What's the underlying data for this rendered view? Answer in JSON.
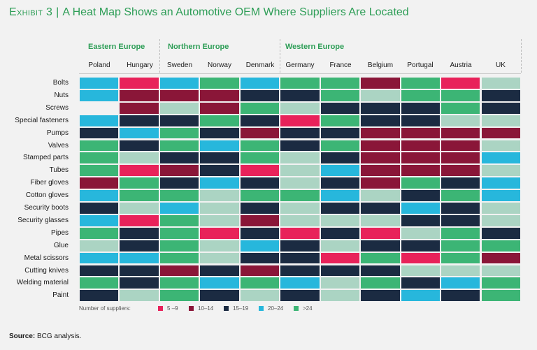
{
  "title": {
    "exhibit": "Exhibit 3",
    "separator": "|",
    "text": "A Heat Map Shows an Automotive OEM Where Suppliers Are Located"
  },
  "source": {
    "label": "Source:",
    "text": "BCG analysis."
  },
  "chart_data": {
    "type": "heatmap",
    "title": "A Heat Map Shows an Automotive OEM Where Suppliers Are Located",
    "regions": [
      {
        "name": "Eastern Europe",
        "countries": [
          "Poland",
          "Hungary"
        ]
      },
      {
        "name": "Northern Europe",
        "countries": [
          "Sweden",
          "Norway",
          "Denmark"
        ]
      },
      {
        "name": "Western Europe",
        "countries": [
          "Germany",
          "France",
          "Belgium",
          "Portugal",
          "Austria",
          "UK"
        ]
      }
    ],
    "columns": [
      "Poland",
      "Hungary",
      "Sweden",
      "Norway",
      "Denmark",
      "Germany",
      "France",
      "Belgium",
      "Portugal",
      "Austria",
      "UK"
    ],
    "rows": [
      "Bolts",
      "Nuts",
      "Screws",
      "Special fasteners",
      "Pumps",
      "Valves",
      "Stamped parts",
      "Tubes",
      "Fiber gloves",
      "Cotton gloves",
      "Security boots",
      "Security glasses",
      "Pipes",
      "Glue",
      "Metal scissors",
      "Cutting knives",
      "Welding material",
      "Paint"
    ],
    "legend": {
      "title": "Number of suppliers:",
      "categories": [
        {
          "key": "R",
          "label": "5 –9",
          "color": "#e8225a"
        },
        {
          "key": "M",
          "label": "10–14",
          "color": "#8a1638"
        },
        {
          "key": "N",
          "label": "15–19",
          "color": "#1b2b42"
        },
        {
          "key": "C",
          "label": "20–24",
          "color": "#27b7dc"
        },
        {
          "key": "G",
          "label": ">24",
          "color": "#3cb575"
        }
      ]
    },
    "extra_colors": {
      "L": "#abd4c3",
      "E": "#f2f2f2"
    },
    "values": [
      [
        "C",
        "R",
        "C",
        "G",
        "C",
        "G",
        "G",
        "M",
        "G",
        "R",
        "L"
      ],
      [
        "C",
        "M",
        "M",
        "M",
        "N",
        "N",
        "G",
        "L",
        "G",
        "G",
        "N"
      ],
      [
        "E",
        "M",
        "L",
        "M",
        "G",
        "L",
        "N",
        "N",
        "N",
        "G",
        "N"
      ],
      [
        "C",
        "N",
        "N",
        "G",
        "N",
        "R",
        "G",
        "N",
        "N",
        "L",
        "L"
      ],
      [
        "N",
        "C",
        "G",
        "N",
        "M",
        "N",
        "N",
        "M",
        "M",
        "M",
        "M"
      ],
      [
        "G",
        "N",
        "G",
        "C",
        "G",
        "N",
        "G",
        "M",
        "M",
        "M",
        "L"
      ],
      [
        "G",
        "L",
        "N",
        "N",
        "G",
        "L",
        "N",
        "M",
        "M",
        "M",
        "C"
      ],
      [
        "G",
        "R",
        "M",
        "N",
        "R",
        "L",
        "C",
        "M",
        "M",
        "M",
        "L"
      ],
      [
        "M",
        "G",
        "N",
        "C",
        "N",
        "L",
        "N",
        "M",
        "G",
        "N",
        "C"
      ],
      [
        "C",
        "G",
        "G",
        "L",
        "G",
        "G",
        "C",
        "L",
        "N",
        "G",
        "C"
      ],
      [
        "N",
        "L",
        "C",
        "L",
        "N",
        "L",
        "N",
        "N",
        "C",
        "N",
        "L"
      ],
      [
        "C",
        "R",
        "G",
        "L",
        "M",
        "L",
        "L",
        "L",
        "N",
        "N",
        "L"
      ],
      [
        "G",
        "N",
        "G",
        "R",
        "N",
        "R",
        "N",
        "R",
        "L",
        "G",
        "N"
      ],
      [
        "L",
        "N",
        "G",
        "L",
        "C",
        "N",
        "L",
        "N",
        "N",
        "G",
        "G"
      ],
      [
        "C",
        "C",
        "G",
        "L",
        "N",
        "N",
        "R",
        "G",
        "R",
        "G",
        "M"
      ],
      [
        "N",
        "N",
        "M",
        "N",
        "M",
        "N",
        "N",
        "N",
        "L",
        "L",
        "L"
      ],
      [
        "G",
        "N",
        "G",
        "C",
        "G",
        "C",
        "L",
        "G",
        "N",
        "C",
        "G"
      ],
      [
        "N",
        "L",
        "G",
        "N",
        "L",
        "N",
        "L",
        "N",
        "C",
        "N",
        "G"
      ]
    ]
  }
}
